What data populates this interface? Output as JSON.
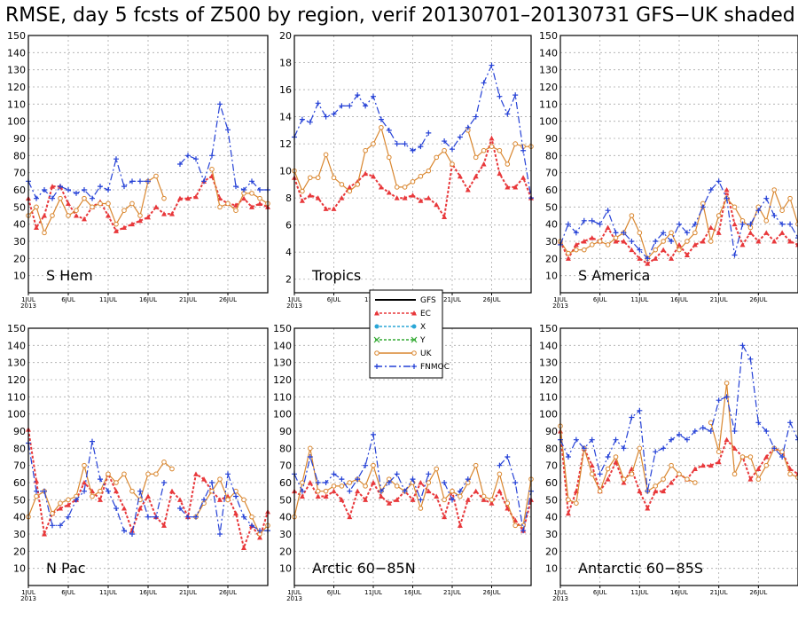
{
  "title": "RMSE, day 5 fcsts of Z500 by region, verif 20130701–20130731 GFS−UK shaded",
  "series_styles": [
    {
      "name": "GFS",
      "color": "#000000",
      "marker": "none",
      "dash": "none"
    },
    {
      "name": "EC",
      "color": "#e8383b",
      "marker": "triangle",
      "dash": "dotted"
    },
    {
      "name": "X",
      "color": "#2aa6d6",
      "marker": "circle",
      "dash": "dotted"
    },
    {
      "name": "Y",
      "color": "#33aa33",
      "marker": "x",
      "dash": "dotted"
    },
    {
      "name": "UK",
      "color": "#d9862e",
      "marker": "circle-open",
      "dash": "none"
    },
    {
      "name": "FNMOC",
      "color": "#2440d6",
      "marker": "plus",
      "dash": "dashdot"
    }
  ],
  "x_ticks": [
    "1JUL",
    "6JUL",
    "11JUL",
    "16JUL",
    "21JUL",
    "26JUL"
  ],
  "x_year_label": "2013",
  "chart_data": [
    {
      "type": "line",
      "region": "S Hem",
      "ylim": [
        0,
        150
      ],
      "yticks": [
        10,
        20,
        30,
        40,
        50,
        60,
        70,
        80,
        90,
        100,
        110,
        120,
        130,
        140,
        150
      ],
      "x_start": "2013-07-01",
      "x_end": "2013-07-31",
      "grid": true,
      "series": [
        {
          "name": "EC",
          "values": [
            55,
            38,
            45,
            62,
            62,
            52,
            45,
            43,
            50,
            53,
            45,
            36,
            38,
            40,
            42,
            44,
            50,
            46,
            46,
            55,
            55,
            56,
            65,
            68,
            55,
            52,
            51,
            55,
            50,
            52,
            50
          ]
        },
        {
          "name": "UK",
          "values": [
            45,
            50,
            35,
            45,
            55,
            45,
            48,
            55,
            50,
            52,
            52,
            40,
            48,
            52,
            45,
            65,
            68,
            55,
            null,
            null,
            null,
            null,
            null,
            72,
            50,
            52,
            48,
            58,
            58,
            55,
            52
          ]
        },
        {
          "name": "FNMOC",
          "values": [
            65,
            55,
            60,
            55,
            62,
            60,
            58,
            60,
            55,
            62,
            60,
            78,
            62,
            65,
            65,
            65,
            null,
            null,
            null,
            75,
            80,
            78,
            65,
            80,
            110,
            95,
            62,
            60,
            65,
            60,
            60
          ]
        }
      ]
    },
    {
      "type": "line",
      "region": "Tropics",
      "ylim": [
        1,
        20
      ],
      "yticks": [
        2,
        4,
        6,
        8,
        10,
        12,
        14,
        16,
        18,
        20
      ],
      "x_start": "2013-07-01",
      "x_end": "2013-07-31",
      "grid": true,
      "series": [
        {
          "name": "EC",
          "values": [
            9.5,
            7.8,
            8.2,
            8.0,
            7.2,
            7.2,
            8.0,
            8.8,
            9.2,
            9.8,
            9.6,
            8.8,
            8.4,
            8.0,
            8.0,
            8.2,
            7.8,
            8.0,
            7.5,
            6.6,
            10.5,
            9.6,
            8.6,
            9.6,
            10.5,
            12.4,
            9.8,
            8.8,
            8.8,
            9.5,
            8.0
          ]
        },
        {
          "name": "UK",
          "values": [
            10.0,
            8.5,
            9.5,
            9.5,
            11.2,
            9.5,
            9.0,
            8.5,
            9.0,
            11.5,
            12.0,
            13.2,
            11.0,
            8.8,
            8.8,
            9.2,
            9.6,
            10.0,
            11.0,
            11.5,
            10.5,
            null,
            13.0,
            11.0,
            11.5,
            11.8,
            11.5,
            10.5,
            12.0,
            11.8,
            11.8
          ]
        },
        {
          "name": "FNMOC",
          "values": [
            12.5,
            13.8,
            13.6,
            15.0,
            14.0,
            14.2,
            14.8,
            14.8,
            15.6,
            14.8,
            15.5,
            13.8,
            13.0,
            12.0,
            12.0,
            11.5,
            11.8,
            12.8,
            null,
            12.2,
            11.6,
            12.5,
            13.2,
            14.0,
            16.5,
            17.8,
            15.5,
            14.2,
            15.6,
            11.5,
            8.0
          ]
        }
      ]
    },
    {
      "type": "line",
      "region": "S America",
      "ylim": [
        0,
        150
      ],
      "yticks": [
        10,
        20,
        30,
        40,
        50,
        60,
        70,
        80,
        90,
        100,
        110,
        120,
        130,
        140,
        150
      ],
      "x_start": "2013-07-01",
      "x_end": "2013-07-31",
      "grid": true,
      "series": [
        {
          "name": "EC",
          "values": [
            30,
            20,
            28,
            30,
            32,
            30,
            38,
            30,
            30,
            25,
            20,
            17,
            20,
            25,
            20,
            28,
            22,
            28,
            30,
            38,
            35,
            60,
            40,
            28,
            35,
            30,
            35,
            30,
            35,
            30,
            28
          ]
        },
        {
          "name": "UK",
          "values": [
            30,
            23,
            25,
            25,
            28,
            30,
            28,
            32,
            35,
            45,
            35,
            20,
            25,
            30,
            35,
            25,
            30,
            35,
            52,
            30,
            45,
            55,
            50,
            42,
            38,
            50,
            42,
            60,
            48,
            55,
            40
          ]
        },
        {
          "name": "FNMOC",
          "values": [
            28,
            40,
            35,
            42,
            42,
            40,
            48,
            35,
            35,
            30,
            25,
            20,
            30,
            35,
            30,
            40,
            35,
            40,
            50,
            60,
            65,
            55,
            22,
            40,
            40,
            48,
            55,
            45,
            40,
            40,
            32
          ]
        }
      ]
    },
    {
      "type": "line",
      "region": "N Pac",
      "ylim": [
        0,
        150
      ],
      "yticks": [
        10,
        20,
        30,
        40,
        50,
        60,
        70,
        80,
        90,
        100,
        110,
        120,
        130,
        140,
        150
      ],
      "x_start": "2013-07-01",
      "x_end": "2013-07-31",
      "grid": true,
      "series": [
        {
          "name": "EC",
          "values": [
            91,
            61,
            30,
            42,
            45,
            47,
            50,
            60,
            55,
            50,
            65,
            55,
            45,
            32,
            45,
            52,
            40,
            35,
            55,
            50,
            40,
            65,
            62,
            55,
            50,
            52,
            42,
            22,
            35,
            28,
            43
          ]
        },
        {
          "name": "UK",
          "values": [
            40,
            52,
            55,
            42,
            48,
            50,
            52,
            70,
            52,
            55,
            65,
            60,
            65,
            55,
            50,
            65,
            65,
            72,
            68,
            null,
            null,
            40,
            48,
            55,
            62,
            50,
            55,
            50,
            40,
            30,
            35
          ]
        },
        {
          "name": "FNMOC",
          "values": [
            83,
            55,
            55,
            35,
            35,
            40,
            50,
            55,
            84,
            62,
            55,
            45,
            32,
            30,
            55,
            40,
            40,
            60,
            null,
            45,
            40,
            40,
            50,
            60,
            30,
            65,
            52,
            40,
            35,
            32,
            32
          ]
        }
      ]
    },
    {
      "type": "line",
      "region": "Arctic 60−85N",
      "ylim": [
        0,
        150
      ],
      "yticks": [
        10,
        20,
        30,
        40,
        50,
        60,
        70,
        80,
        90,
        100,
        110,
        120,
        130,
        140,
        150
      ],
      "x_start": "2013-07-01",
      "x_end": "2013-07-31",
      "grid": true,
      "series": [
        {
          "name": "EC",
          "values": [
            55,
            52,
            60,
            52,
            52,
            55,
            50,
            40,
            55,
            50,
            60,
            52,
            48,
            50,
            55,
            50,
            60,
            55,
            52,
            40,
            55,
            35,
            50,
            55,
            50,
            48,
            55,
            45,
            38,
            32,
            50
          ]
        },
        {
          "name": "UK",
          "values": [
            40,
            60,
            80,
            55,
            55,
            58,
            58,
            60,
            62,
            58,
            70,
            55,
            62,
            58,
            55,
            60,
            45,
            60,
            68,
            50,
            55,
            52,
            60,
            70,
            52,
            50,
            65,
            48,
            35,
            35,
            62
          ]
        },
        {
          "name": "FNMOC",
          "values": [
            65,
            55,
            75,
            60,
            60,
            65,
            62,
            55,
            62,
            70,
            88,
            55,
            60,
            65,
            55,
            62,
            50,
            65,
            null,
            60,
            50,
            55,
            62,
            null,
            null,
            null,
            70,
            75,
            60,
            32,
            55
          ]
        }
      ]
    },
    {
      "type": "line",
      "region": "Antarctic 60−85S",
      "ylim": [
        0,
        150
      ],
      "yticks": [
        10,
        20,
        30,
        40,
        50,
        60,
        70,
        80,
        90,
        100,
        110,
        120,
        130,
        140,
        150
      ],
      "x_start": "2013-07-01",
      "x_end": "2013-07-31",
      "grid": true,
      "series": [
        {
          "name": "EC",
          "values": [
            90,
            42,
            55,
            80,
            70,
            55,
            62,
            72,
            60,
            68,
            55,
            45,
            55,
            55,
            60,
            65,
            62,
            68,
            70,
            70,
            72,
            85,
            80,
            75,
            62,
            68,
            75,
            80,
            78,
            68,
            65
          ]
        },
        {
          "name": "UK",
          "values": [
            93,
            50,
            48,
            80,
            65,
            55,
            68,
            75,
            62,
            65,
            80,
            55,
            58,
            62,
            70,
            65,
            62,
            60,
            null,
            95,
            78,
            118,
            65,
            75,
            75,
            62,
            70,
            80,
            78,
            65,
            63
          ]
        },
        {
          "name": "FNMOC",
          "values": [
            85,
            75,
            85,
            80,
            85,
            65,
            75,
            85,
            80,
            98,
            102,
            55,
            78,
            80,
            85,
            88,
            85,
            90,
            92,
            90,
            108,
            110,
            90,
            140,
            132,
            95,
            90,
            80,
            75,
            95,
            85
          ]
        }
      ]
    }
  ]
}
